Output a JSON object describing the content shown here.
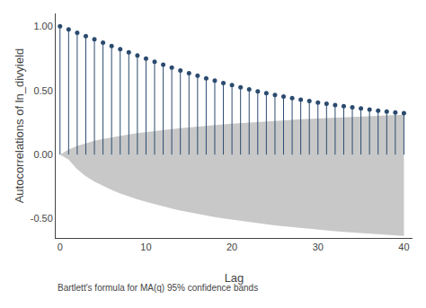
{
  "chart_data": {
    "type": "stem",
    "xlabel": "Lag",
    "ylabel": "Autocorrelations of ln_divyield",
    "caption": "Bartlett's formula for MA(q) 95% confidence bands",
    "xlim": [
      -0.5,
      41
    ],
    "ylim": [
      -0.65,
      1.1
    ],
    "xticks": [
      0,
      10,
      20,
      30,
      40
    ],
    "yticks": [
      {
        "value": -0.5,
        "label": "-0.50"
      },
      {
        "value": 0.0,
        "label": "0.00"
      },
      {
        "value": 0.5,
        "label": "0.50"
      },
      {
        "value": 1.0,
        "label": "1.00"
      }
    ],
    "grid": false,
    "x": [
      0,
      1,
      2,
      3,
      4,
      5,
      6,
      7,
      8,
      9,
      10,
      11,
      12,
      13,
      14,
      15,
      16,
      17,
      18,
      19,
      20,
      21,
      22,
      23,
      24,
      25,
      26,
      27,
      28,
      29,
      30,
      31,
      32,
      33,
      34,
      35,
      36,
      37,
      38,
      39,
      40
    ],
    "series": [
      {
        "type": "band",
        "color": "#c8c8c8",
        "upper": [
          0.0,
          0.04,
          0.068,
          0.09,
          0.107,
          0.122,
          0.135,
          0.147,
          0.157,
          0.167,
          0.176,
          0.184,
          0.192,
          0.199,
          0.206,
          0.213,
          0.219,
          0.225,
          0.23,
          0.236,
          0.241,
          0.246,
          0.25,
          0.255,
          0.259,
          0.263,
          0.267,
          0.271,
          0.275,
          0.278,
          0.282,
          0.285,
          0.288,
          0.291,
          0.294,
          0.297,
          0.3,
          0.302,
          0.305,
          0.307,
          0.31
        ],
        "lower": [
          0.0,
          -0.04,
          -0.115,
          -0.168,
          -0.21,
          -0.245,
          -0.276,
          -0.303,
          -0.327,
          -0.349,
          -0.369,
          -0.388,
          -0.405,
          -0.421,
          -0.436,
          -0.45,
          -0.463,
          -0.475,
          -0.487,
          -0.498,
          -0.508,
          -0.518,
          -0.527,
          -0.536,
          -0.544,
          -0.552,
          -0.559,
          -0.567,
          -0.573,
          -0.58,
          -0.586,
          -0.592,
          -0.598,
          -0.603,
          -0.608,
          -0.613,
          -0.618,
          -0.622,
          -0.627,
          -0.631,
          -0.635
        ]
      },
      {
        "type": "stem",
        "color": "#2b4b6f",
        "marker": "circle",
        "values": [
          1.0,
          0.975,
          0.95,
          0.924,
          0.898,
          0.872,
          0.847,
          0.822,
          0.797,
          0.772,
          0.748,
          0.724,
          0.701,
          0.678,
          0.656,
          0.635,
          0.615,
          0.595,
          0.576,
          0.558,
          0.541,
          0.524,
          0.508,
          0.493,
          0.479,
          0.465,
          0.452,
          0.44,
          0.428,
          0.417,
          0.406,
          0.396,
          0.386,
          0.377,
          0.368,
          0.359,
          0.351,
          0.343,
          0.336,
          0.329,
          0.323
        ]
      }
    ]
  }
}
